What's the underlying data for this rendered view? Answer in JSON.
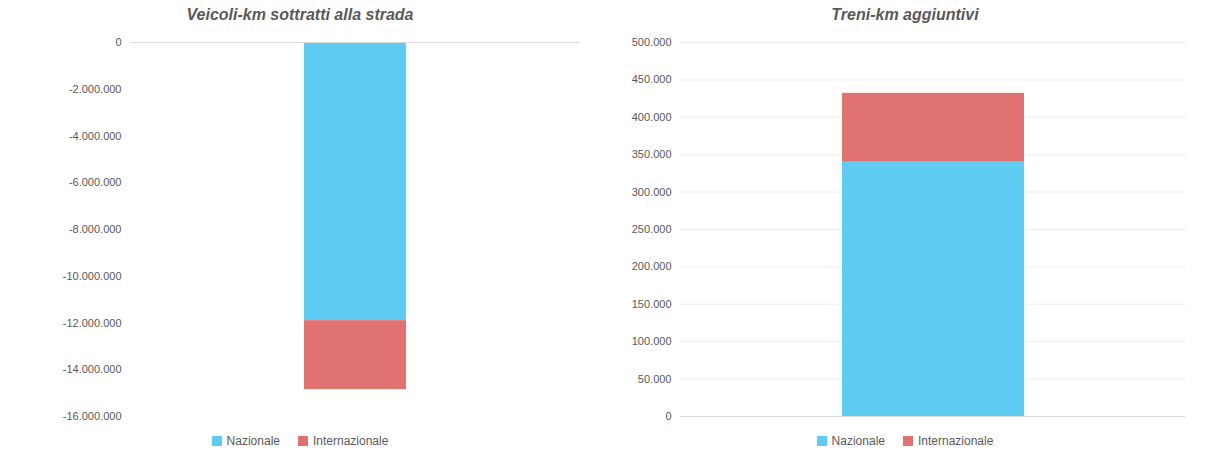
{
  "chart_data": [
    {
      "type": "bar",
      "title": "Veicoli-km sottratti alla strada",
      "stacked": true,
      "grid": false,
      "legend": "bottom",
      "categories": [
        null
      ],
      "series": [
        {
          "name": "Nazionale",
          "color": "#5ecbf2",
          "values": [
            -11900000
          ]
        },
        {
          "name": "Internazionale",
          "color": "#e07272",
          "values": [
            -2950000
          ]
        }
      ],
      "ylim": [
        -16000000,
        0
      ],
      "yticks": [
        0,
        {
          "value": -2000000,
          "label": "-2.000.000"
        },
        {
          "value": -4000000,
          "label": "-4.000.000"
        },
        {
          "value": -6000000,
          "label": "-6.000.000"
        },
        {
          "value": -8000000,
          "label": "-8.000.000"
        },
        {
          "value": -10000000,
          "label": "-10.000.000"
        },
        {
          "value": -12000000,
          "label": "-12.000.000"
        },
        {
          "value": -14000000,
          "label": "-14.000.000"
        },
        {
          "value": -16000000,
          "label": "-16.000.000"
        }
      ]
    },
    {
      "type": "bar",
      "title": "Treni-km aggiuntivi",
      "stacked": true,
      "grid": true,
      "legend": "bottom",
      "categories": [
        null
      ],
      "series": [
        {
          "name": "Nazionale",
          "color": "#5ecbf2",
          "values": [
            340000
          ]
        },
        {
          "name": "Internazionale",
          "color": "#e07272",
          "values": [
            92000
          ]
        }
      ],
      "ylim": [
        0,
        500000
      ],
      "yticks": [
        0,
        {
          "value": 50000,
          "label": "50.000"
        },
        {
          "value": 100000,
          "label": "100.000"
        },
        {
          "value": 150000,
          "label": "150.000"
        },
        {
          "value": 200000,
          "label": "200.000"
        },
        {
          "value": 250000,
          "label": "250.000"
        },
        {
          "value": 300000,
          "label": "300.000"
        },
        {
          "value": 350000,
          "label": "350.000"
        },
        {
          "value": 400000,
          "label": "400.000"
        },
        {
          "value": 450000,
          "label": "450.000"
        },
        {
          "value": 500000,
          "label": "500.000"
        }
      ]
    }
  ]
}
